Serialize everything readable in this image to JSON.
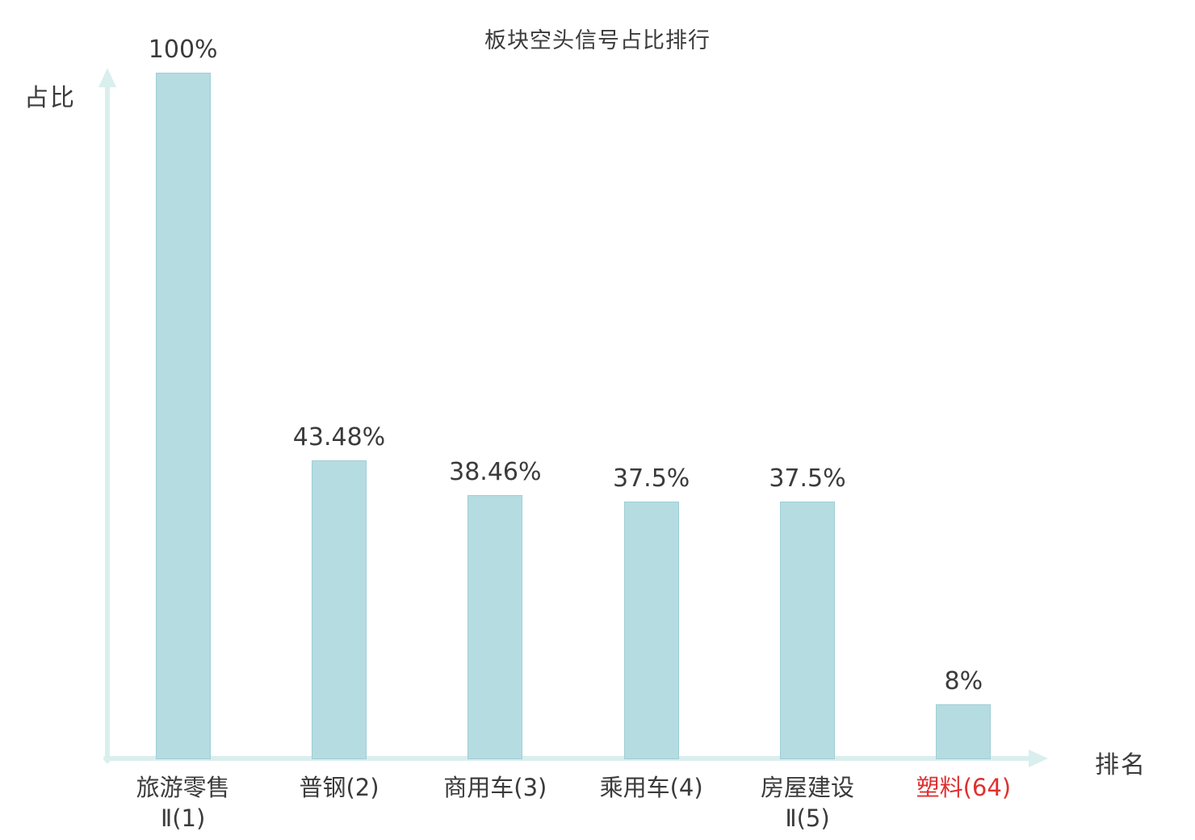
{
  "chart_data": {
    "type": "bar",
    "title": "板块空头信号占比排行",
    "xlabel": "排名",
    "ylabel": "占比",
    "ylim": [
      0,
      100
    ],
    "grid": false,
    "legend": "none",
    "categories": [
      {
        "lines": [
          "旅游零售",
          "Ⅱ(1)"
        ]
      },
      {
        "lines": [
          "普钢(2)"
        ]
      },
      {
        "lines": [
          "商用车(3)"
        ]
      },
      {
        "lines": [
          "乘用车(4)"
        ]
      },
      {
        "lines": [
          "房屋建设",
          "Ⅱ(5)"
        ]
      },
      {
        "lines": [
          "塑料(64)"
        ]
      }
    ],
    "values": [
      100,
      43.48,
      38.46,
      37.5,
      37.5,
      8
    ],
    "value_labels": [
      "100%",
      "43.48%",
      "38.46%",
      "37.5%",
      "37.5%",
      "8%"
    ],
    "highlight_index": 5,
    "bar_color": "#b5dce1",
    "bar_border_color": "#9fced5",
    "axis_color": "#d9efee",
    "text_color": "#3b3b3b",
    "highlight_color": "#e03030"
  }
}
